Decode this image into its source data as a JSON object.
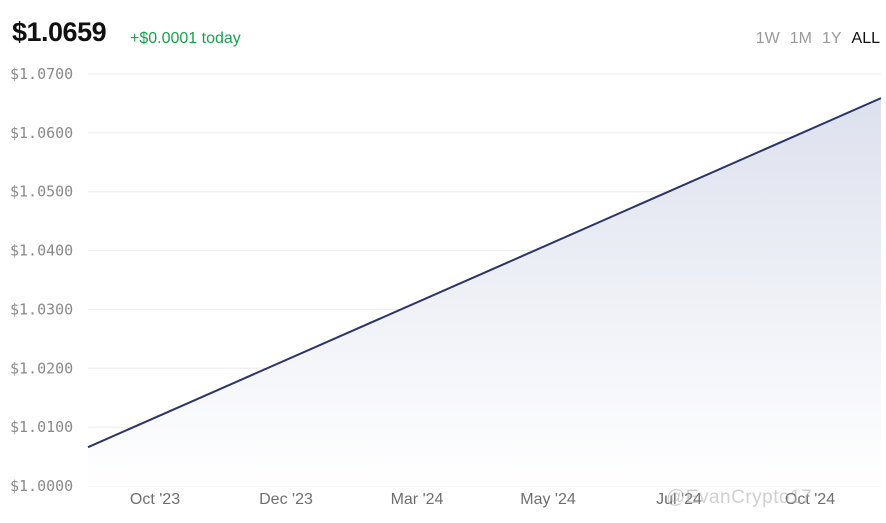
{
  "header": {
    "price": "$1.0659",
    "change": "+$0.0001 today"
  },
  "ranges": [
    {
      "label": "1W",
      "active": false
    },
    {
      "label": "1M",
      "active": false
    },
    {
      "label": "1Y",
      "active": false
    },
    {
      "label": "ALL",
      "active": true
    }
  ],
  "watermark": "@EvanCrypto17",
  "colors": {
    "line": "#2b3466",
    "fill_top": "#dde1ee",
    "positive": "#16a34a",
    "grid": "#ececec"
  },
  "chart_data": {
    "type": "area",
    "x": [
      "2023-08-11",
      "2024-11-14"
    ],
    "y": [
      1.0066,
      1.0659
    ],
    "xticks": [
      "Oct '23",
      "Dec '23",
      "Mar '24",
      "May '24",
      "Jul '24",
      "Oct '24"
    ],
    "yticks": [
      "$1.0000",
      "$1.0100",
      "$1.0200",
      "$1.0300",
      "$1.0400",
      "$1.0500",
      "$1.0600",
      "$1.0700"
    ],
    "ylim": [
      1.0,
      1.07
    ],
    "grid": true,
    "legend": "none"
  }
}
